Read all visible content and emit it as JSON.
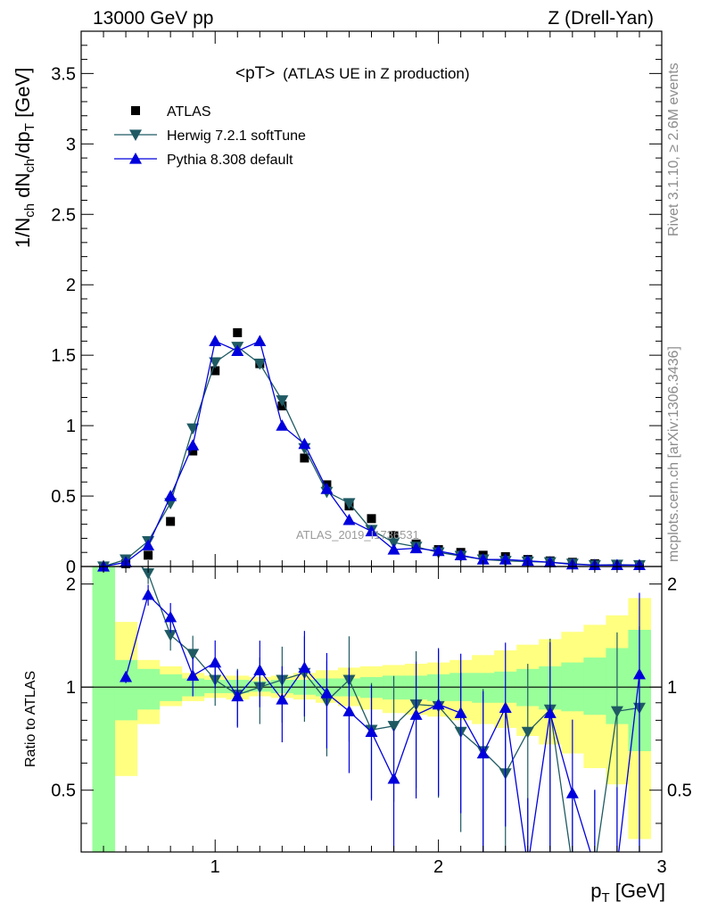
{
  "header": {
    "left": "13000 GeV pp",
    "right": "Z (Drell-Yan)"
  },
  "side": {
    "top": "Rivet 3.1.10, ≥ 2.6M events",
    "bottom": "mcplots.cern.ch [arXiv:1306.3436]"
  },
  "chart_data": [
    {
      "type": "scatter",
      "title": "<pT>",
      "subtitle": "(ATLAS UE in Z production)",
      "ylabel": "1/N_ch dN_ch/dp_T [GeV]",
      "xlabel": "p_T [GeV]",
      "xlim": [
        0.4,
        3.0
      ],
      "ylim": [
        0,
        3.8
      ],
      "xticks": [
        "1",
        "2",
        "3"
      ],
      "yticks": [
        "0",
        "0.5",
        "1",
        "1.5",
        "2",
        "2.5",
        "3",
        "3.5"
      ],
      "watermark": "ATLAS_2019_I1736531",
      "legend_position": "top-left",
      "x": [
        0.5,
        0.6,
        0.7,
        0.8,
        0.9,
        1.0,
        1.1,
        1.2,
        1.3,
        1.4,
        1.5,
        1.6,
        1.7,
        1.8,
        1.9,
        2.0,
        2.1,
        2.2,
        2.3,
        2.4,
        2.5,
        2.6,
        2.7,
        2.8,
        2.9
      ],
      "series": [
        {
          "name": "ATLAS",
          "color": "#000000",
          "marker": "square",
          "values": [
            0.0,
            0.02,
            0.08,
            0.32,
            0.82,
            1.39,
            1.66,
            1.44,
            1.14,
            0.77,
            0.58,
            0.43,
            0.34,
            0.22,
            0.16,
            0.12,
            0.1,
            0.08,
            0.07,
            0.05,
            0.04,
            0.03,
            0.02,
            0.015,
            0.01
          ]
        },
        {
          "name": "Herwig 7.2.1 softTune",
          "color": "#1f5a63",
          "marker": "triangle-down",
          "values": [
            0.0,
            0.05,
            0.18,
            0.45,
            0.98,
            1.45,
            1.56,
            1.44,
            1.18,
            0.84,
            0.53,
            0.45,
            0.26,
            0.17,
            0.14,
            0.1,
            0.075,
            0.05,
            0.04,
            0.035,
            0.03,
            0.02,
            0.01,
            0.013,
            0.01
          ]
        },
        {
          "name": "Pythia 8.308 default",
          "color": "#0000dd",
          "marker": "triangle-up",
          "values": [
            0.0,
            0.03,
            0.15,
            0.5,
            0.86,
            1.6,
            1.53,
            1.6,
            1.0,
            0.87,
            0.55,
            0.33,
            0.25,
            0.12,
            0.13,
            0.11,
            0.08,
            0.05,
            0.05,
            0.04,
            0.03,
            0.015,
            0.01,
            0.01,
            0.01
          ]
        }
      ]
    },
    {
      "type": "line",
      "ylabel": "Ratio to ATLAS",
      "xlabel": "p_T [GeV]",
      "xlim": [
        0.4,
        3.0
      ],
      "ylim": [
        0.33,
        2.25
      ],
      "xticks": [
        "1",
        "2",
        "3"
      ],
      "yticks": [
        "0.5",
        "1",
        "2"
      ],
      "x": [
        0.6,
        0.7,
        0.8,
        0.9,
        1.0,
        1.1,
        1.2,
        1.3,
        1.4,
        1.5,
        1.6,
        1.7,
        1.8,
        1.9,
        2.0,
        2.1,
        2.2,
        2.3,
        2.4,
        2.5,
        2.6,
        2.7,
        2.8,
        2.9
      ],
      "series": [
        {
          "name": "Herwig 7.2.1 softTune",
          "color": "#1f5a63",
          "values": [
            2.5,
            2.15,
            1.42,
            1.25,
            1.05,
            0.95,
            1.0,
            1.05,
            1.1,
            0.91,
            1.05,
            0.75,
            0.77,
            0.89,
            0.88,
            0.74,
            0.65,
            0.56,
            0.74,
            0.86,
            0.3,
            0.3,
            0.85,
            0.87
          ]
        },
        {
          "name": "Pythia 8.308 default",
          "color": "#0000dd",
          "values": [
            1.07,
            1.86,
            1.6,
            1.08,
            1.18,
            0.94,
            1.12,
            0.92,
            1.14,
            0.96,
            0.85,
            0.74,
            0.54,
            0.83,
            0.89,
            0.84,
            0.64,
            0.87,
            0.3,
            0.84,
            0.49,
            0.3,
            0.3,
            1.09
          ]
        }
      ],
      "band_edges": [
        0.45,
        0.55,
        0.65,
        0.75,
        0.85,
        0.95,
        1.05,
        1.15,
        1.25,
        1.35,
        1.45,
        1.55,
        1.65,
        1.75,
        1.85,
        1.95,
        2.05,
        2.15,
        2.25,
        2.35,
        2.45,
        2.55,
        2.65,
        2.75,
        2.85,
        2.95
      ],
      "stat_band": {
        "color": "#99ff99",
        "lo": [
          0.3,
          0.8,
          0.86,
          0.91,
          0.94,
          0.96,
          0.96,
          0.97,
          0.96,
          0.95,
          0.94,
          0.94,
          0.93,
          0.92,
          0.92,
          0.91,
          0.91,
          0.9,
          0.9,
          0.88,
          0.86,
          0.85,
          0.83,
          0.78,
          0.65
        ],
        "hi": [
          2.4,
          1.2,
          1.13,
          1.09,
          1.06,
          1.05,
          1.05,
          1.04,
          1.05,
          1.05,
          1.06,
          1.06,
          1.07,
          1.08,
          1.08,
          1.09,
          1.1,
          1.1,
          1.11,
          1.13,
          1.15,
          1.18,
          1.22,
          1.3,
          1.47
        ]
      },
      "syst_band": {
        "color": "#ffff80",
        "lo": [
          0.3,
          0.55,
          0.78,
          0.88,
          0.91,
          0.93,
          0.92,
          0.94,
          0.93,
          0.92,
          0.9,
          0.88,
          0.86,
          0.84,
          0.83,
          0.82,
          0.8,
          0.78,
          0.76,
          0.72,
          0.68,
          0.64,
          0.58,
          0.52,
          0.36
        ],
        "hi": [
          2.4,
          1.55,
          1.2,
          1.15,
          1.1,
          1.08,
          1.08,
          1.07,
          1.08,
          1.1,
          1.12,
          1.14,
          1.15,
          1.16,
          1.17,
          1.18,
          1.2,
          1.24,
          1.28,
          1.33,
          1.38,
          1.45,
          1.52,
          1.62,
          1.82
        ]
      },
      "reference_line": 1
    }
  ]
}
